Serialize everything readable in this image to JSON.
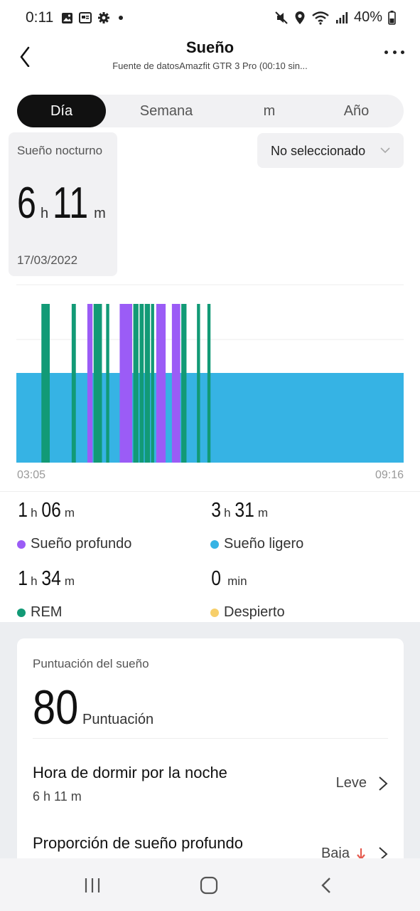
{
  "status_bar": {
    "time": "0:11",
    "battery": "40%",
    "left_icons": [
      "image-icon",
      "news-icon",
      "gear-icon",
      "dot-icon"
    ],
    "right_icons": [
      "mute-icon",
      "location-icon",
      "wifi-icon",
      "signal-icon",
      "battery-icon"
    ]
  },
  "header": {
    "title": "Sueño",
    "subtitle": "Fuente de datosAmazfit GTR 3 Pro (00:10 sin..."
  },
  "tabs": [
    {
      "label": "Día",
      "active": true
    },
    {
      "label": "Semana",
      "active": false
    },
    {
      "label": "m",
      "active": false
    },
    {
      "label": "Año",
      "active": false
    }
  ],
  "summary": {
    "label": "Sueño nocturno",
    "hours": "6",
    "hours_unit": "h",
    "minutes": "11",
    "minutes_unit": "m",
    "date": "17/03/2022"
  },
  "dropdown": {
    "label": "No seleccionado"
  },
  "chart_data": {
    "type": "bar",
    "x_start": "03:05",
    "x_end": "09:16",
    "grid": true,
    "colors": {
      "light": "#36b3e4",
      "rem": "#129a76",
      "deep": "#9b5cf6",
      "awake": "#f7cf6a"
    },
    "segments": [
      {
        "stage": "light",
        "start": "03:05",
        "end": "09:16"
      },
      {
        "stage": "rem",
        "start": "03:29",
        "end": "03:37"
      },
      {
        "stage": "rem",
        "start": "03:58",
        "end": "04:02"
      },
      {
        "stage": "deep",
        "start": "04:13",
        "end": "04:18"
      },
      {
        "stage": "rem",
        "start": "04:19",
        "end": "04:27"
      },
      {
        "stage": "rem",
        "start": "04:31",
        "end": "04:34"
      },
      {
        "stage": "deep",
        "start": "04:44",
        "end": "04:56"
      },
      {
        "stage": "rem",
        "start": "04:57",
        "end": "05:02"
      },
      {
        "stage": "rem",
        "start": "05:03",
        "end": "05:07"
      },
      {
        "stage": "rem",
        "start": "05:08",
        "end": "05:13"
      },
      {
        "stage": "rem",
        "start": "05:14",
        "end": "05:17"
      },
      {
        "stage": "deep",
        "start": "05:19",
        "end": "05:28"
      },
      {
        "stage": "deep",
        "start": "05:34",
        "end": "05:42"
      },
      {
        "stage": "rem",
        "start": "05:43",
        "end": "05:48"
      },
      {
        "stage": "rem",
        "start": "05:58",
        "end": "06:01"
      },
      {
        "stage": "rem",
        "start": "06:08",
        "end": "06:11"
      }
    ]
  },
  "stats": {
    "deep": {
      "h": "1",
      "h_unit": "h",
      "m": "06",
      "m_unit": "m",
      "label": "Sueño profundo",
      "color": "#9b5cf6"
    },
    "light": {
      "h": "3",
      "h_unit": "h",
      "m": "31",
      "m_unit": "m",
      "label": "Sueño ligero",
      "color": "#36b3e4"
    },
    "rem": {
      "h": "1",
      "h_unit": "h",
      "m": "34",
      "m_unit": "m",
      "label": "REM",
      "color": "#129a76"
    },
    "awake": {
      "value": "0",
      "unit": "min",
      "label": "Despierto",
      "color": "#f7cf6a"
    }
  },
  "score": {
    "label": "Puntuación del sueño",
    "value": "80",
    "unit": "Puntuación",
    "rows": [
      {
        "title": "Hora de dormir por la noche",
        "sub": "6 h 11 m",
        "status": "Leve"
      },
      {
        "title": "Proporción de sueño profundo",
        "sub": "",
        "status": "Baja"
      }
    ]
  },
  "navbar": {
    "items": [
      "recent-apps-icon",
      "home-icon",
      "back-icon"
    ]
  }
}
